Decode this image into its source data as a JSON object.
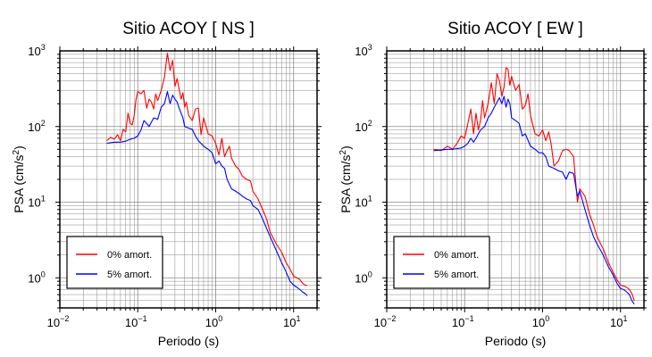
{
  "chart_data": [
    {
      "type": "line",
      "title": "Sitio ACOY [ NS ]",
      "xlabel": "Periodo (s)",
      "ylabel": "PSA (cm/s²)",
      "xscale": "log",
      "yscale": "log",
      "xlim": [
        0.01,
        20
      ],
      "ylim": [
        0.4,
        1000
      ],
      "grid": true,
      "legend_position": "bottom-left",
      "xticks": [
        {
          "base": "10",
          "exp": "−2"
        },
        {
          "base": "10",
          "exp": "−1"
        },
        {
          "base": "10",
          "exp": "0"
        },
        {
          "base": "10",
          "exp": "1"
        }
      ],
      "yticks": [
        {
          "base": "10",
          "exp": "0"
        },
        {
          "base": "10",
          "exp": "1"
        },
        {
          "base": "10",
          "exp": "2"
        },
        {
          "base": "10",
          "exp": "3"
        }
      ],
      "series": [
        {
          "name": "0% amort.",
          "color": "#ff0000",
          "x": [
            0.04,
            0.045,
            0.05,
            0.055,
            0.06,
            0.065,
            0.07,
            0.075,
            0.08,
            0.085,
            0.09,
            0.095,
            0.1,
            0.11,
            0.12,
            0.13,
            0.14,
            0.15,
            0.16,
            0.17,
            0.18,
            0.2,
            0.22,
            0.24,
            0.26,
            0.28,
            0.3,
            0.32,
            0.34,
            0.36,
            0.38,
            0.4,
            0.42,
            0.45,
            0.5,
            0.55,
            0.6,
            0.65,
            0.7,
            0.8,
            0.9,
            1.0,
            1.1,
            1.2,
            1.3,
            1.4,
            1.5,
            1.6,
            1.8,
            2.0,
            2.2,
            2.5,
            2.8,
            3.0,
            3.5,
            4.0,
            4.5,
            5.0,
            6.0,
            7.0,
            8.0,
            9.0,
            10,
            11,
            12,
            13,
            14,
            15
          ],
          "y": [
            65,
            72,
            68,
            78,
            65,
            92,
            85,
            150,
            110,
            105,
            140,
            230,
            290,
            270,
            300,
            175,
            230,
            210,
            170,
            270,
            220,
            300,
            450,
            930,
            550,
            750,
            340,
            430,
            310,
            230,
            280,
            180,
            210,
            140,
            120,
            170,
            175,
            78,
            130,
            80,
            75,
            60,
            42,
            70,
            40,
            48,
            55,
            38,
            30,
            27,
            22,
            20,
            19,
            14,
            11,
            8,
            6,
            4,
            2.8,
            2.2,
            1.6,
            1.3,
            1.05,
            1.0,
            0.95,
            0.85,
            0.8,
            0.8
          ]
        },
        {
          "name": "5% amort.",
          "color": "#0000ff",
          "x": [
            0.04,
            0.05,
            0.06,
            0.07,
            0.08,
            0.09,
            0.1,
            0.11,
            0.12,
            0.13,
            0.14,
            0.15,
            0.16,
            0.18,
            0.2,
            0.22,
            0.24,
            0.26,
            0.28,
            0.3,
            0.32,
            0.34,
            0.36,
            0.38,
            0.4,
            0.45,
            0.5,
            0.55,
            0.6,
            0.7,
            0.8,
            0.9,
            1.0,
            1.1,
            1.2,
            1.3,
            1.4,
            1.6,
            1.8,
            2.0,
            2.2,
            2.5,
            2.8,
            3.0,
            3.5,
            4.0,
            4.5,
            5.0,
            6.0,
            7.0,
            8.0,
            9.0,
            10,
            11,
            12,
            13,
            14,
            15
          ],
          "y": [
            60,
            62,
            62,
            64,
            68,
            70,
            75,
            90,
            120,
            110,
            100,
            115,
            130,
            125,
            180,
            200,
            290,
            200,
            260,
            230,
            210,
            175,
            150,
            130,
            100,
            95,
            92,
            75,
            65,
            55,
            50,
            45,
            32,
            35,
            30,
            28,
            20,
            15,
            14,
            13,
            12,
            11,
            10.5,
            9,
            8,
            6,
            4.5,
            3.5,
            2.3,
            1.6,
            1.2,
            0.9,
            0.8,
            0.75,
            0.7,
            0.65,
            0.62,
            0.58
          ]
        }
      ]
    },
    {
      "type": "line",
      "title": "Sitio ACOY [ EW ]",
      "xlabel": "Periodo (s)",
      "ylabel": "PSA (cm/s²)",
      "xscale": "log",
      "yscale": "log",
      "xlim": [
        0.01,
        20
      ],
      "ylim": [
        0.4,
        1000
      ],
      "grid": true,
      "legend_position": "bottom-left",
      "xticks": [
        {
          "base": "10",
          "exp": "−2"
        },
        {
          "base": "10",
          "exp": "−1"
        },
        {
          "base": "10",
          "exp": "0"
        },
        {
          "base": "10",
          "exp": "1"
        }
      ],
      "yticks": [
        {
          "base": "10",
          "exp": "0"
        },
        {
          "base": "10",
          "exp": "1"
        },
        {
          "base": "10",
          "exp": "2"
        },
        {
          "base": "10",
          "exp": "3"
        }
      ],
      "series": [
        {
          "name": "0% amort.",
          "color": "#ff0000",
          "x": [
            0.04,
            0.05,
            0.06,
            0.07,
            0.08,
            0.09,
            0.1,
            0.11,
            0.12,
            0.13,
            0.14,
            0.15,
            0.16,
            0.17,
            0.18,
            0.2,
            0.22,
            0.24,
            0.26,
            0.28,
            0.3,
            0.32,
            0.34,
            0.36,
            0.38,
            0.4,
            0.45,
            0.5,
            0.55,
            0.6,
            0.65,
            0.7,
            0.8,
            0.9,
            1.0,
            1.1,
            1.2,
            1.3,
            1.4,
            1.6,
            1.8,
            2.0,
            2.2,
            2.5,
            2.8,
            3.0,
            3.5,
            4.0,
            4.5,
            5.0,
            6.0,
            7.0,
            8.0,
            9.0,
            10,
            11,
            12,
            13,
            14,
            15
          ],
          "y": [
            50,
            48,
            55,
            50,
            60,
            75,
            70,
            110,
            170,
            80,
            150,
            90,
            120,
            220,
            130,
            200,
            380,
            200,
            500,
            400,
            250,
            330,
            600,
            570,
            350,
            460,
            300,
            360,
            170,
            190,
            270,
            140,
            80,
            75,
            90,
            65,
            85,
            55,
            30,
            35,
            48,
            50,
            48,
            40,
            10,
            15,
            12,
            7,
            5,
            3.5,
            2.4,
            1.6,
            1.2,
            0.95,
            0.8,
            0.78,
            0.75,
            0.7,
            0.62,
            0.5
          ]
        },
        {
          "name": "5% amort.",
          "color": "#0000ff",
          "x": [
            0.04,
            0.05,
            0.06,
            0.07,
            0.08,
            0.09,
            0.1,
            0.11,
            0.12,
            0.13,
            0.14,
            0.15,
            0.16,
            0.18,
            0.2,
            0.22,
            0.24,
            0.26,
            0.28,
            0.3,
            0.32,
            0.34,
            0.36,
            0.38,
            0.4,
            0.45,
            0.5,
            0.55,
            0.6,
            0.7,
            0.8,
            0.9,
            1.0,
            1.1,
            1.2,
            1.4,
            1.6,
            1.8,
            2.0,
            2.2,
            2.5,
            2.8,
            3.0,
            3.5,
            4.0,
            4.5,
            5.0,
            6.0,
            7.0,
            8.0,
            9.0,
            10,
            11,
            12,
            13,
            14,
            15
          ],
          "y": [
            48,
            49,
            50,
            50,
            51,
            52,
            55,
            60,
            70,
            62,
            70,
            80,
            90,
            100,
            130,
            150,
            180,
            210,
            240,
            200,
            250,
            180,
            230,
            200,
            130,
            120,
            110,
            75,
            80,
            55,
            50,
            45,
            45,
            40,
            30,
            28,
            26,
            25,
            20,
            25,
            24,
            12,
            14,
            8,
            5,
            3.5,
            2.8,
            2.0,
            1.4,
            1.1,
            0.85,
            0.72,
            0.7,
            0.65,
            0.6,
            0.5,
            0.45
          ]
        }
      ]
    }
  ]
}
